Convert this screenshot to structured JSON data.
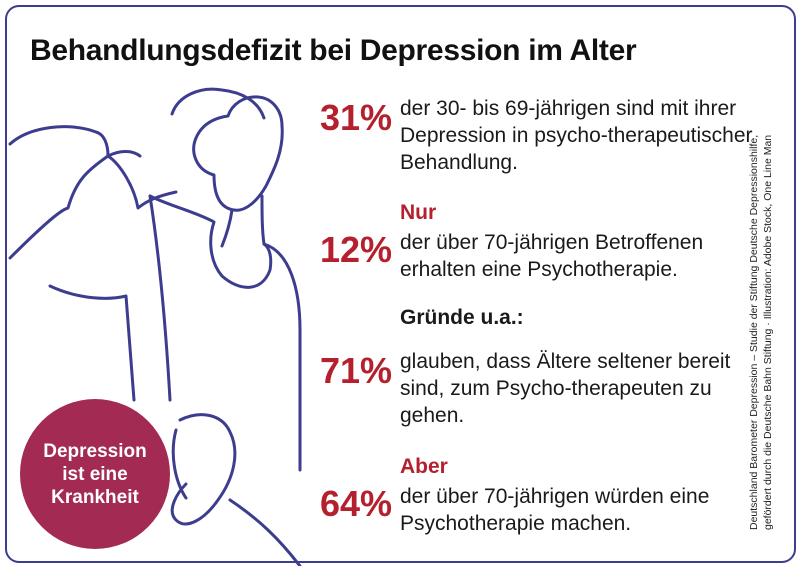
{
  "title": "Behandlungsdefizit bei Depression im Alter",
  "stats": [
    {
      "prefix": "",
      "percent": "31%",
      "text": "der 30- bis 69-jährigen sind mit ihrer Depression in psycho-therapeutischer Behandlung."
    },
    {
      "prefix": "Nur",
      "percent": "12%",
      "text": "der über 70-jährigen Betroffenen erhalten eine Psychotherapie."
    },
    {
      "prefix": "",
      "percent": "71%",
      "text": "glauben, dass Ältere seltener bereit sind, zum Psycho-therapeuten zu gehen."
    },
    {
      "prefix": "Aber",
      "percent": "64%",
      "text": "der über 70-jährigen würden eine Psychotherapie machen."
    }
  ],
  "reasons_heading": "Gründe u.a.:",
  "badge": "Depression\nist eine\nKrankheit",
  "credit": "Deutschland Barometer Depression – Studie der Stiftung Deutsche Depressionshilfe,\ngefördert durch die Deutsche Bahn Stiftung · Illustration: Adobe Stock, One Line Man",
  "colors": {
    "accent": "#b5202e",
    "badge": "#a32a52",
    "line": "#3d3d8f"
  }
}
